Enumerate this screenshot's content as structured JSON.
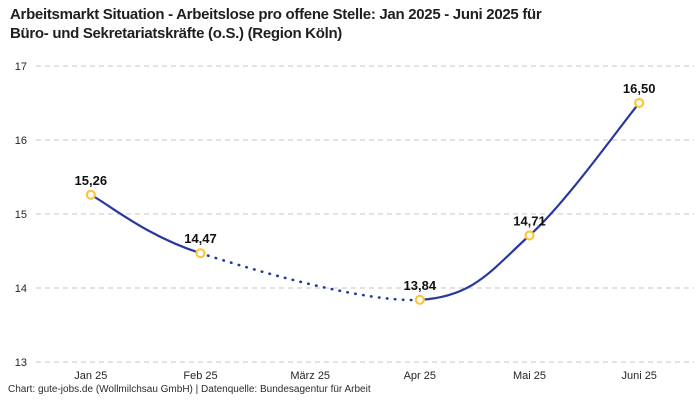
{
  "header": {
    "title_lines": [
      "Arbeitsmarkt Situation - Arbeitslose pro offene Stelle: Jan 2025 - Juni 2025 für",
      "Büro- und Sekretariatskräfte (o.S.) (Region Köln)"
    ]
  },
  "footer": {
    "text": "Chart: gute-jobs.de (Wollmilchsau GmbH) | Datenquelle: Bundesagentur für Arbeit"
  },
  "chart_data": {
    "type": "line",
    "title": "Arbeitsmarkt Situation - Arbeitslose pro offene Stelle: Jan 2025 - Juni 2025 für Büro- und Sekretariatskräfte (o.S.) (Region Köln)",
    "categories": [
      "Jan 25",
      "Feb 25",
      "März 25",
      "Apr 25",
      "Mai 25",
      "Juni 25"
    ],
    "values": [
      15.26,
      14.47,
      null,
      13.84,
      14.71,
      16.5
    ],
    "point_labels": [
      "15,26",
      "14,47",
      null,
      "13,84",
      "14,71",
      "16,50"
    ],
    "ylim": [
      13,
      17
    ],
    "yticks": [
      13,
      14,
      15,
      16,
      17
    ],
    "xlabel": "",
    "ylabel": "",
    "grid": "horizontal-dashed",
    "legend": "none",
    "missing_data_note": "März 25 has no marker/label; segment Feb 25 → Apr 25 drawn dotted",
    "colors": {
      "line": "#27389f",
      "marker": "#fdc53c",
      "marker_fill": "#ffffff",
      "grid": "#c6c6c6",
      "text": "#262626"
    }
  }
}
